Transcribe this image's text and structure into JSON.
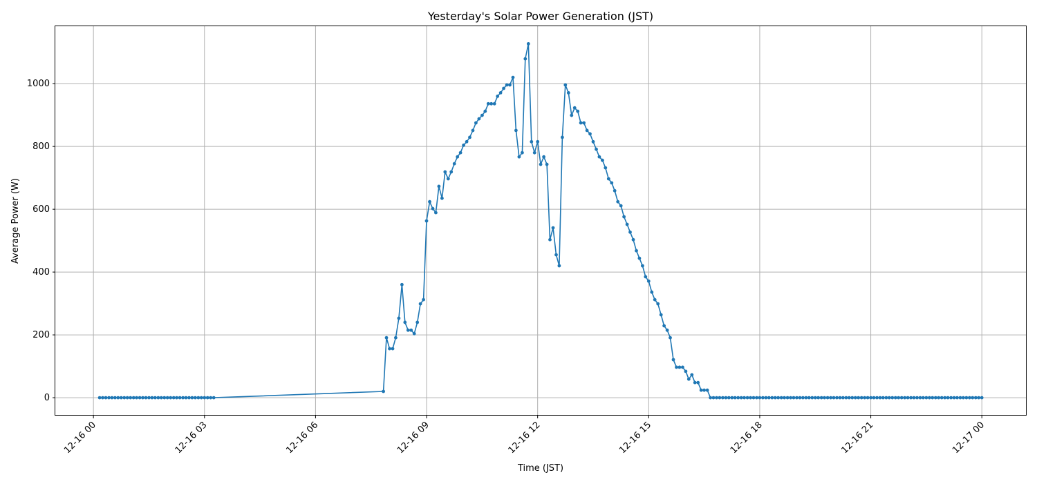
{
  "chart_data": {
    "type": "line",
    "title": "Yesterday's Solar Power Generation (JST)",
    "xlabel": "Time (JST)",
    "ylabel": "Average Power (W)",
    "xlim_hours": [
      -1.03,
      25.21
    ],
    "ylim": [
      -57,
      1185
    ],
    "grid": true,
    "interval_minutes": 5,
    "x_ticks": [
      {
        "hour": 0,
        "label": "12-16 00"
      },
      {
        "hour": 3,
        "label": "12-16 03"
      },
      {
        "hour": 6,
        "label": "12-16 06"
      },
      {
        "hour": 9,
        "label": "12-16 09"
      },
      {
        "hour": 12,
        "label": "12-16 12"
      },
      {
        "hour": 15,
        "label": "12-16 15"
      },
      {
        "hour": 18,
        "label": "12-16 18"
      },
      {
        "hour": 21,
        "label": "12-16 21"
      },
      {
        "hour": 24,
        "label": "12-17 00"
      }
    ],
    "y_ticks": [
      0,
      200,
      400,
      600,
      800,
      1000
    ],
    "color": "#1f77b4",
    "segments": [
      {
        "start": "12-16 00:10",
        "start_hour": 0.1667,
        "values": [
          0,
          0,
          0,
          0,
          0,
          0,
          0,
          0,
          0,
          0,
          0,
          0,
          0,
          0,
          0,
          0,
          0,
          0,
          0,
          0,
          0,
          0,
          0,
          0,
          0,
          0,
          0,
          0,
          0,
          0,
          0,
          0,
          0,
          0,
          0,
          0,
          0,
          0
        ]
      },
      {
        "start": "12-16 07:50",
        "start_hour": 7.8333,
        "values": [
          20,
          191,
          156,
          156,
          191,
          253,
          360,
          240,
          215,
          215,
          204,
          240,
          299,
          312,
          563,
          624,
          602,
          589,
          673,
          635,
          719,
          697,
          719,
          745,
          767,
          780,
          804,
          815,
          829,
          851,
          875,
          888,
          899,
          912,
          936,
          936,
          936,
          960,
          971,
          985,
          996,
          996,
          1020,
          851,
          767,
          780,
          1079,
          1127,
          815,
          780,
          815,
          743,
          767,
          743,
          503,
          541,
          455,
          420,
          829,
          996,
          971,
          899,
          923,
          912,
          875,
          875,
          851,
          840,
          815,
          791,
          767,
          756,
          732,
          697,
          684,
          659,
          624,
          611,
          576,
          552,
          527,
          503,
          468,
          444,
          420,
          385,
          371,
          336,
          312,
          299,
          264,
          229,
          215,
          191,
          121,
          97,
          97,
          97,
          84,
          59,
          73,
          48,
          48,
          24,
          24,
          24,
          0,
          0,
          0,
          0,
          0,
          0,
          0,
          0,
          0,
          0,
          0,
          0,
          0,
          0,
          0,
          0,
          0,
          0,
          0,
          0,
          0,
          0,
          0,
          0,
          0,
          0,
          0,
          0,
          0,
          0,
          0,
          0,
          0,
          0,
          0,
          0,
          0,
          0,
          0,
          0,
          0,
          0,
          0,
          0,
          0,
          0,
          0,
          0,
          0,
          0,
          0,
          0,
          0,
          0,
          0,
          0,
          0,
          0,
          0,
          0,
          0,
          0,
          0,
          0,
          0,
          0,
          0,
          0,
          0,
          0,
          0,
          0,
          0,
          0,
          0,
          0,
          0,
          0,
          0,
          0,
          0,
          0,
          0,
          0,
          0,
          0,
          0,
          0,
          0
        ]
      }
    ]
  }
}
